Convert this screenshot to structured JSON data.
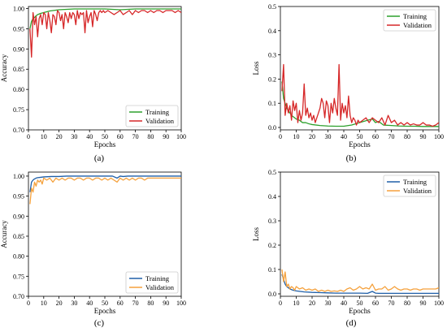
{
  "figure": {
    "captions": [
      "(a)",
      "(b)",
      "(c)",
      "(d)"
    ]
  },
  "chart_data": [
    {
      "id": "a",
      "type": "line",
      "title": "",
      "xlabel": "Epochs",
      "ylabel": "Accuracy",
      "xlim": [
        0,
        100
      ],
      "ylim": [
        0.7,
        1.005
      ],
      "xticks": [
        0,
        10,
        20,
        30,
        40,
        50,
        60,
        70,
        80,
        90,
        100
      ],
      "yticks": [
        0.7,
        0.75,
        0.8,
        0.85,
        0.9,
        0.95,
        1.0
      ],
      "ytick_labels": [
        "0.70",
        "0.75",
        "0.80",
        "0.85",
        "0.90",
        "0.95",
        "1.00"
      ],
      "legend_position": "lower-right",
      "series": [
        {
          "name": "Training",
          "color": "#2ca02c",
          "x": [
            1,
            2,
            3,
            4,
            5,
            6,
            8,
            10,
            12,
            14,
            16,
            18,
            20,
            25,
            30,
            35,
            40,
            45,
            50,
            55,
            60,
            65,
            70,
            75,
            80,
            85,
            90,
            95,
            100
          ],
          "y": [
            0.95,
            0.968,
            0.975,
            0.978,
            0.982,
            0.985,
            0.988,
            0.99,
            0.992,
            0.994,
            0.995,
            0.996,
            0.997,
            0.998,
            0.999,
            0.999,
            0.999,
            0.999,
            0.999,
            0.998,
            0.997,
            0.998,
            0.999,
            0.999,
            0.999,
            0.999,
            0.999,
            0.999,
            0.999
          ]
        },
        {
          "name": "Validation",
          "color": "#d62728",
          "x": [
            1,
            2,
            3,
            4,
            5,
            6,
            7,
            8,
            9,
            10,
            11,
            12,
            13,
            14,
            15,
            16,
            17,
            18,
            19,
            20,
            21,
            22,
            23,
            24,
            25,
            26,
            27,
            28,
            29,
            30,
            31,
            32,
            33,
            34,
            35,
            36,
            37,
            38,
            39,
            40,
            41,
            42,
            43,
            44,
            45,
            46,
            47,
            48,
            49,
            50,
            52,
            54,
            56,
            58,
            60,
            62,
            64,
            66,
            68,
            70,
            72,
            74,
            76,
            78,
            80,
            82,
            84,
            86,
            88,
            90,
            92,
            94,
            96,
            98,
            100
          ],
          "y": [
            0.95,
            0.88,
            0.99,
            0.96,
            0.98,
            0.93,
            0.975,
            0.985,
            0.96,
            0.99,
            0.985,
            0.95,
            0.99,
            0.97,
            0.94,
            0.985,
            0.98,
            0.96,
            0.995,
            0.99,
            0.97,
            0.985,
            0.95,
            0.99,
            0.98,
            0.965,
            0.99,
            0.975,
            0.99,
            0.985,
            0.96,
            0.995,
            0.975,
            0.99,
            0.985,
            0.99,
            0.94,
            0.995,
            0.965,
            0.98,
            0.99,
            0.955,
            0.995,
            0.985,
            0.97,
            0.99,
            0.995,
            0.99,
            0.995,
            0.99,
            0.995,
            0.99,
            0.985,
            0.99,
            0.995,
            0.985,
            0.99,
            0.995,
            0.985,
            0.995,
            0.99,
            0.995,
            0.995,
            0.99,
            0.995,
            0.99,
            0.995,
            0.995,
            0.99,
            0.995,
            0.995,
            0.995,
            0.99,
            0.995,
            0.99
          ]
        }
      ]
    },
    {
      "id": "b",
      "type": "line",
      "title": "",
      "xlabel": "Epochs",
      "ylabel": "Loss",
      "xlim": [
        0,
        100
      ],
      "ylim": [
        -0.01,
        0.5
      ],
      "xticks": [
        0,
        10,
        20,
        30,
        40,
        50,
        60,
        70,
        80,
        90,
        100
      ],
      "yticks": [
        0.0,
        0.1,
        0.2,
        0.3,
        0.4,
        0.5
      ],
      "ytick_labels": [
        "0.0",
        "0.1",
        "0.2",
        "0.3",
        "0.4",
        "0.5"
      ],
      "legend_position": "top-right",
      "series": [
        {
          "name": "Training",
          "color": "#2ca02c",
          "x": [
            1,
            2,
            3,
            4,
            5,
            6,
            7,
            8,
            9,
            10,
            12,
            14,
            16,
            18,
            20,
            25,
            30,
            35,
            40,
            45,
            50,
            55,
            58,
            60,
            62,
            65,
            70,
            75,
            80,
            85,
            90,
            95,
            100
          ],
          "y": [
            0.19,
            0.12,
            0.1,
            0.08,
            0.07,
            0.06,
            0.05,
            0.045,
            0.04,
            0.035,
            0.03,
            0.02,
            0.02,
            0.015,
            0.012,
            0.008,
            0.006,
            0.005,
            0.005,
            0.01,
            0.02,
            0.03,
            0.035,
            0.02,
            0.025,
            0.01,
            0.008,
            0.006,
            0.005,
            0.005,
            0.004,
            0.004,
            0.004
          ]
        },
        {
          "name": "Validation",
          "color": "#d62728",
          "x": [
            1,
            2,
            3,
            4,
            5,
            6,
            7,
            8,
            9,
            10,
            11,
            12,
            13,
            14,
            15,
            16,
            17,
            18,
            19,
            20,
            21,
            22,
            23,
            24,
            25,
            26,
            27,
            28,
            29,
            30,
            31,
            32,
            33,
            34,
            35,
            36,
            37,
            38,
            39,
            40,
            41,
            42,
            43,
            44,
            45,
            46,
            47,
            48,
            49,
            50,
            52,
            54,
            56,
            58,
            60,
            62,
            64,
            66,
            68,
            70,
            72,
            74,
            76,
            78,
            80,
            82,
            84,
            86,
            88,
            90,
            92,
            94,
            96,
            98,
            100
          ],
          "y": [
            0.15,
            0.26,
            0.05,
            0.1,
            0.06,
            0.09,
            0.03,
            0.11,
            0.07,
            0.1,
            0.02,
            0.07,
            0.03,
            0.06,
            0.18,
            0.05,
            0.08,
            0.04,
            0.06,
            0.03,
            0.05,
            0.02,
            0.04,
            0.06,
            0.08,
            0.12,
            0.1,
            0.04,
            0.11,
            0.09,
            0.02,
            0.1,
            0.06,
            0.12,
            0.08,
            0.05,
            0.26,
            0.03,
            0.1,
            0.06,
            0.09,
            0.04,
            0.13,
            0.05,
            0.02,
            0.04,
            0.03,
            0.01,
            0.03,
            0.02,
            0.03,
            0.04,
            0.02,
            0.04,
            0.03,
            0.02,
            0.04,
            0.01,
            0.05,
            0.02,
            0.03,
            0.01,
            0.02,
            0.01,
            0.02,
            0.01,
            0.015,
            0.01,
            0.01,
            0.02,
            0.01,
            0.01,
            0.005,
            0.01,
            0.02
          ]
        }
      ]
    },
    {
      "id": "c",
      "type": "line",
      "title": "",
      "xlabel": "Epochs",
      "ylabel": "Accuracy",
      "xlim": [
        0,
        100
      ],
      "ylim": [
        0.7,
        1.01
      ],
      "xticks": [
        0,
        10,
        20,
        30,
        40,
        50,
        60,
        70,
        80,
        90,
        100
      ],
      "yticks": [
        0.7,
        0.75,
        0.8,
        0.85,
        0.9,
        0.95,
        1.0
      ],
      "ytick_labels": [
        "0.70",
        "0.75",
        "0.80",
        "0.85",
        "0.90",
        "0.95",
        "1.00"
      ],
      "legend_position": "lower-right",
      "series": [
        {
          "name": "Training",
          "color": "#1f5fa8",
          "x": [
            1,
            2,
            3,
            4,
            5,
            6,
            8,
            10,
            15,
            20,
            25,
            30,
            35,
            40,
            45,
            50,
            55,
            58,
            60,
            62,
            65,
            70,
            75,
            80,
            85,
            90,
            95,
            100
          ],
          "y": [
            0.96,
            0.985,
            0.99,
            0.993,
            0.995,
            0.996,
            0.997,
            0.998,
            0.999,
            0.999,
            1.0,
            1.0,
            1.0,
            1.0,
            1.0,
            1.0,
            1.0,
            0.995,
            1.0,
            0.999,
            1.0,
            1.0,
            1.0,
            1.0,
            1.0,
            1.0,
            1.0,
            1.0
          ]
        },
        {
          "name": "Validation",
          "color": "#f5a13c",
          "x": [
            1,
            2,
            3,
            4,
            5,
            6,
            7,
            8,
            9,
            10,
            12,
            14,
            16,
            18,
            20,
            22,
            24,
            26,
            28,
            30,
            32,
            34,
            36,
            38,
            40,
            42,
            44,
            46,
            48,
            50,
            52,
            54,
            56,
            58,
            60,
            62,
            64,
            66,
            68,
            70,
            72,
            74,
            76,
            78,
            80,
            82,
            84,
            86,
            88,
            90,
            92,
            94,
            96,
            98,
            100
          ],
          "y": [
            0.93,
            0.97,
            0.96,
            0.985,
            0.975,
            0.99,
            0.985,
            0.99,
            0.98,
            0.995,
            0.99,
            0.995,
            0.985,
            0.995,
            0.99,
            0.995,
            0.99,
            0.995,
            0.995,
            0.99,
            0.995,
            0.995,
            0.99,
            0.995,
            0.995,
            0.99,
            0.995,
            0.995,
            0.99,
            0.995,
            0.99,
            0.995,
            0.99,
            0.985,
            0.995,
            0.99,
            0.995,
            0.99,
            0.995,
            0.99,
            0.995,
            0.995,
            0.99,
            0.995,
            0.995,
            0.995,
            0.995,
            0.995,
            0.995,
            0.995,
            0.995,
            0.995,
            0.995,
            0.995,
            0.995
          ]
        }
      ]
    },
    {
      "id": "d",
      "type": "line",
      "title": "",
      "xlabel": "Epochs",
      "ylabel": "Loss",
      "xlim": [
        0,
        100
      ],
      "ylim": [
        -0.01,
        0.5
      ],
      "xticks": [
        0,
        10,
        20,
        30,
        40,
        50,
        60,
        70,
        80,
        90,
        100
      ],
      "yticks": [
        0.0,
        0.1,
        0.2,
        0.3,
        0.4,
        0.5
      ],
      "ytick_labels": [
        "0.0",
        "0.1",
        "0.2",
        "0.3",
        "0.4",
        "0.5"
      ],
      "legend_position": "top-right",
      "series": [
        {
          "name": "Training",
          "color": "#1f5fa8",
          "x": [
            1,
            2,
            3,
            4,
            5,
            6,
            8,
            10,
            15,
            20,
            25,
            30,
            35,
            40,
            45,
            50,
            55,
            58,
            60,
            62,
            65,
            70,
            75,
            80,
            85,
            90,
            95,
            100
          ],
          "y": [
            0.08,
            0.06,
            0.04,
            0.03,
            0.025,
            0.02,
            0.015,
            0.012,
            0.008,
            0.006,
            0.005,
            0.004,
            0.003,
            0.003,
            0.003,
            0.003,
            0.002,
            0.01,
            0.003,
            0.002,
            0.002,
            0.002,
            0.002,
            0.002,
            0.002,
            0.002,
            0.002,
            0.002
          ]
        },
        {
          "name": "Validation",
          "color": "#f5a13c",
          "x": [
            1,
            2,
            3,
            4,
            5,
            6,
            7,
            8,
            9,
            10,
            12,
            14,
            16,
            18,
            20,
            22,
            24,
            26,
            28,
            30,
            32,
            34,
            36,
            38,
            40,
            42,
            44,
            46,
            48,
            50,
            52,
            54,
            56,
            58,
            60,
            62,
            64,
            66,
            68,
            70,
            72,
            74,
            76,
            78,
            80,
            82,
            84,
            86,
            88,
            90,
            92,
            94,
            96,
            98,
            100
          ],
          "y": [
            0.1,
            0.05,
            0.09,
            0.03,
            0.04,
            0.02,
            0.03,
            0.025,
            0.015,
            0.03,
            0.02,
            0.025,
            0.015,
            0.02,
            0.015,
            0.02,
            0.01,
            0.015,
            0.01,
            0.015,
            0.01,
            0.012,
            0.01,
            0.015,
            0.01,
            0.02,
            0.025,
            0.015,
            0.02,
            0.03,
            0.02,
            0.025,
            0.02,
            0.04,
            0.015,
            0.02,
            0.02,
            0.03,
            0.015,
            0.02,
            0.03,
            0.02,
            0.015,
            0.02,
            0.02,
            0.015,
            0.02,
            0.02,
            0.015,
            0.02,
            0.02,
            0.02,
            0.02,
            0.02,
            0.025
          ]
        }
      ]
    }
  ]
}
